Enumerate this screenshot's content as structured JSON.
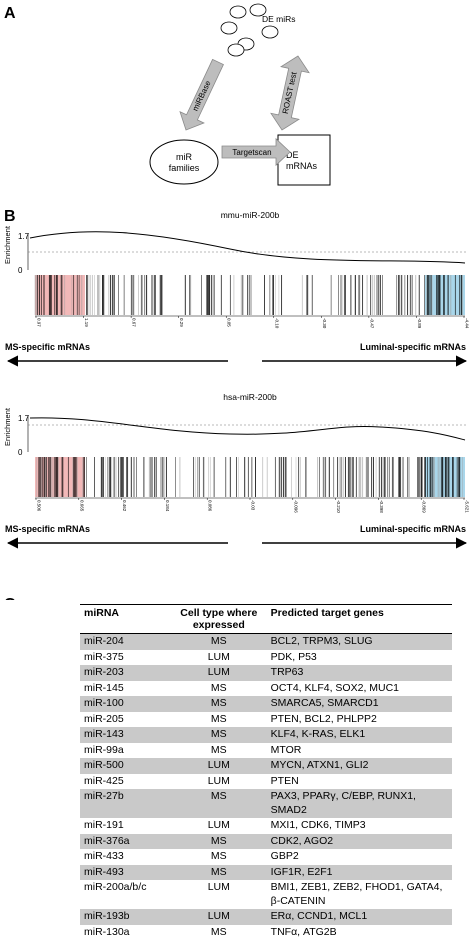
{
  "panels": {
    "a": "A",
    "b": "B",
    "c": "C"
  },
  "diagram": {
    "nodes": [
      {
        "lines": [
          "DE miRs"
        ]
      },
      {
        "lines": [
          "miR",
          "families"
        ]
      },
      {
        "lines": [
          "DE",
          "mRNAs"
        ]
      }
    ],
    "edges": [
      {
        "label": "miRBase"
      },
      {
        "label": "Targetscan"
      },
      {
        "label": "ROAST test"
      }
    ]
  },
  "plots": [
    {
      "title": "mmu-miR-200b",
      "y_label": "Enrichment",
      "yticks": [
        "1.7",
        "0"
      ],
      "xtick_labels": [
        "0.97",
        "1.19",
        "0.67",
        "0.29",
        "0.05",
        "-0.10",
        "-0.30",
        "-0.47",
        "-0.89",
        "-4.44"
      ],
      "left_label": "MS-specific mRNAs",
      "right_label": "Luminal-specific mRNAs"
    },
    {
      "title": "hsa-miR-200b",
      "y_label": "Enrichment",
      "yticks": [
        "1.7",
        "0"
      ],
      "xtick_labels": [
        "0.506",
        "0.665",
        "0.462",
        "0.184",
        "0.086",
        "-0.03",
        "-0.096",
        "-0.210",
        "-0.398",
        "-0.869",
        "-5.621"
      ],
      "left_label": "MS-specific mRNAs",
      "right_label": "Luminal-specific mRNAs"
    }
  ],
  "table": {
    "header": [
      "miRNA",
      "Cell type where expressed",
      "Predicted target genes"
    ],
    "rows": [
      [
        "miR-204",
        "MS",
        "BCL2, TRPM3, SLUG"
      ],
      [
        "miR-375",
        "LUM",
        "PDK, P53"
      ],
      [
        "miR-203",
        "LUM",
        "TRP63"
      ],
      [
        "miR-145",
        "MS",
        "OCT4, KLF4, SOX2, MUC1"
      ],
      [
        "miR-100",
        "MS",
        "SMARCA5, SMARCD1"
      ],
      [
        "miR-205",
        "MS",
        "PTEN, BCL2, PHLPP2"
      ],
      [
        "miR-143",
        "MS",
        "KLF4, K-RAS, ELK1"
      ],
      [
        "miR-99a",
        "MS",
        "MTOR"
      ],
      [
        "miR-500",
        "LUM",
        "MYCN, ATXN1, GLI2"
      ],
      [
        "miR-425",
        "LUM",
        "PTEN"
      ],
      [
        "miR-27b",
        "MS",
        "PAX3, PPARγ, C/EBP, RUNX1, SMAD2"
      ],
      [
        "miR-191",
        "LUM",
        "MXI1, CDK6, TIMP3"
      ],
      [
        "miR-376a",
        "MS",
        "CDK2, AGO2"
      ],
      [
        "miR-433",
        "MS",
        "GBP2"
      ],
      [
        "miR-493",
        "MS",
        "IGF1R, E2F1"
      ],
      [
        "miR-200a/b/c",
        "LUM",
        "BMI1, ZEB1, ZEB2, FHOD1, GATA4, β-CATENIN"
      ],
      [
        "miR-193b",
        "LUM",
        "ERα, CCND1, MCL1"
      ],
      [
        "miR-130a",
        "MS",
        "TNFα, ATG2B"
      ]
    ]
  }
}
